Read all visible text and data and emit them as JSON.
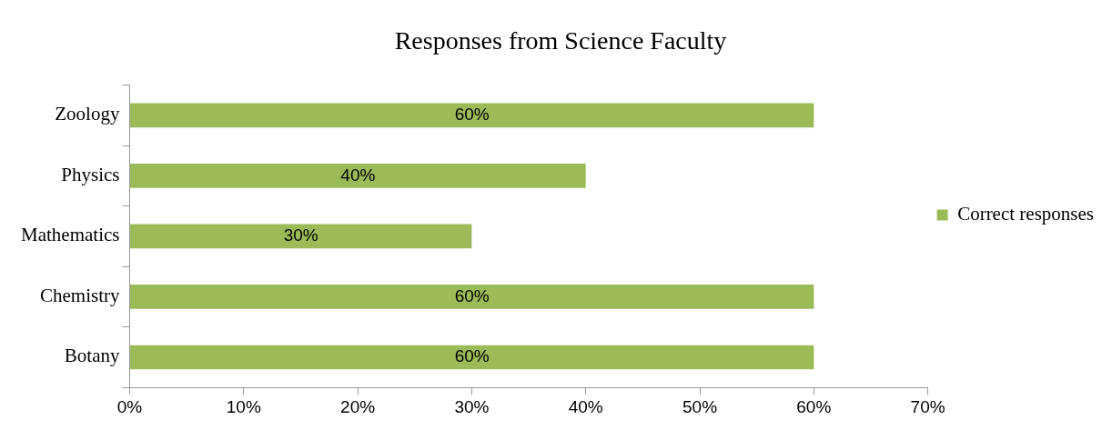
{
  "chart_data": {
    "type": "bar",
    "orientation": "horizontal",
    "title": "Responses from Science Faculty",
    "categories": [
      "Zoology",
      "Physics",
      "Mathematics",
      "Chemistry",
      "Botany"
    ],
    "series": [
      {
        "name": "Correct responses",
        "color": "#9bbb59",
        "values": [
          60,
          40,
          30,
          60,
          60
        ],
        "value_labels": [
          "60%",
          "40%",
          "30%",
          "60%",
          "60%"
        ]
      }
    ],
    "xlim": [
      0,
      70
    ],
    "xticks": [
      {
        "value": 0,
        "label": "0%"
      },
      {
        "value": 10,
        "label": "10%"
      },
      {
        "value": 20,
        "label": "20%"
      },
      {
        "value": 30,
        "label": "30%"
      },
      {
        "value": 40,
        "label": "40%"
      },
      {
        "value": 50,
        "label": "50%"
      },
      {
        "value": 60,
        "label": "60%"
      },
      {
        "value": 70,
        "label": "70%"
      }
    ],
    "legend": "right",
    "grid": false
  }
}
